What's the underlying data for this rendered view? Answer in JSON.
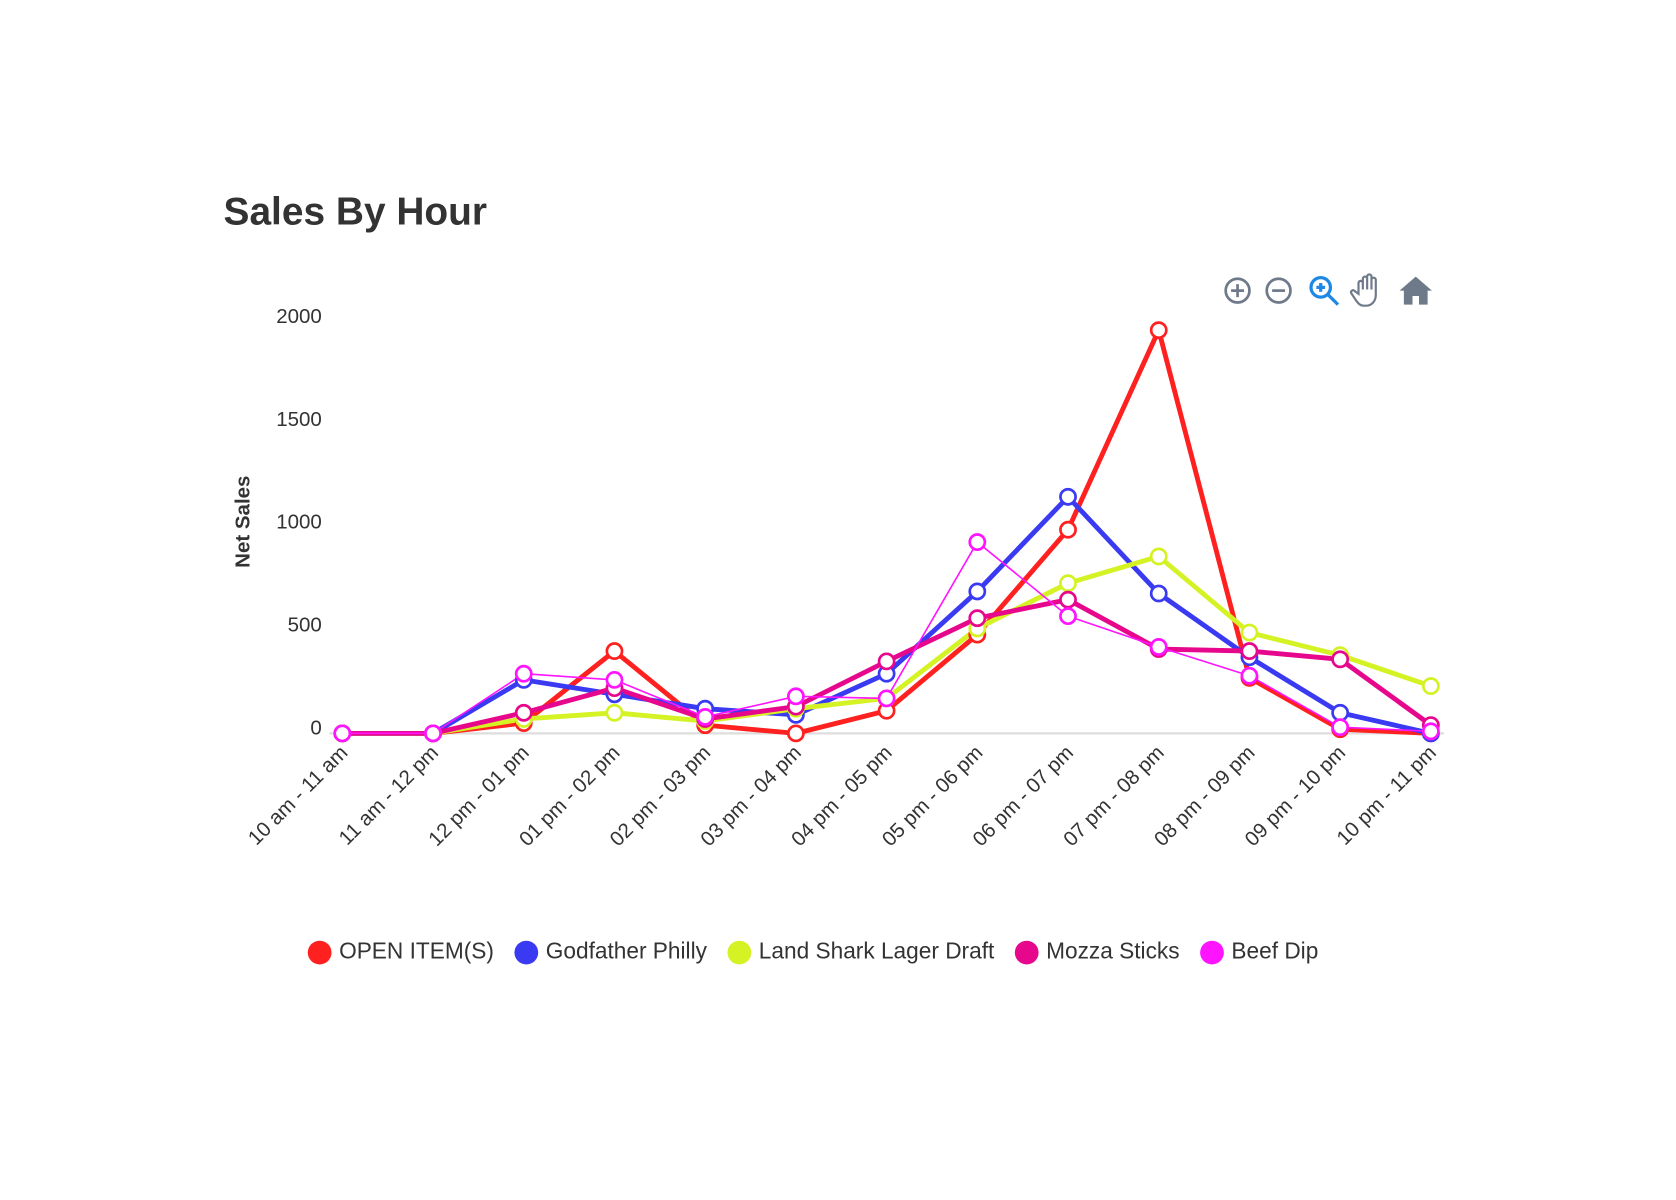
{
  "chart_data": {
    "type": "line",
    "title": "Sales By Hour",
    "y_label": "Net Sales",
    "categories": [
      "10 am - 11 am",
      "11 am - 12 pm",
      "12 pm - 01 pm",
      "01 pm - 02 pm",
      "02 pm - 03 pm",
      "03 pm - 04 pm",
      "04 pm - 05 pm",
      "05 pm - 06 pm",
      "06 pm - 07 pm",
      "07 pm - 08 pm",
      "08 pm - 09 pm",
      "09 pm - 10 pm",
      "10 pm - 11 pm"
    ],
    "series": [
      {
        "name": "OPEN ITEM(S)",
        "color": "#ff2020",
        "values": [
          0,
          0,
          50,
          400,
          40,
          0,
          110,
          480,
          990,
          1960,
          270,
          20,
          0
        ]
      },
      {
        "name": "Godfather Philly",
        "color": "#3a3af2",
        "values": [
          0,
          0,
          260,
          190,
          120,
          90,
          290,
          690,
          1150,
          680,
          370,
          100,
          0
        ]
      },
      {
        "name": "Land Shark Lager Draft",
        "color": "#d4f224",
        "values": [
          0,
          0,
          70,
          100,
          60,
          120,
          170,
          510,
          730,
          860,
          490,
          380,
          230
        ]
      },
      {
        "name": "Mozza Sticks",
        "color": "#e6078c",
        "values": [
          0,
          0,
          100,
          220,
          70,
          130,
          350,
          560,
          650,
          410,
          400,
          360,
          40
        ]
      },
      {
        "name": "Beef Dip",
        "color": "#ff14ff",
        "values": [
          0,
          0,
          290,
          260,
          80,
          180,
          170,
          930,
          570,
          420,
          280,
          30,
          10
        ]
      }
    ],
    "ylim": [
      0,
      2000
    ],
    "yticks": [
      0,
      500,
      1000,
      1500,
      2000
    ],
    "legend": "bottom"
  }
}
